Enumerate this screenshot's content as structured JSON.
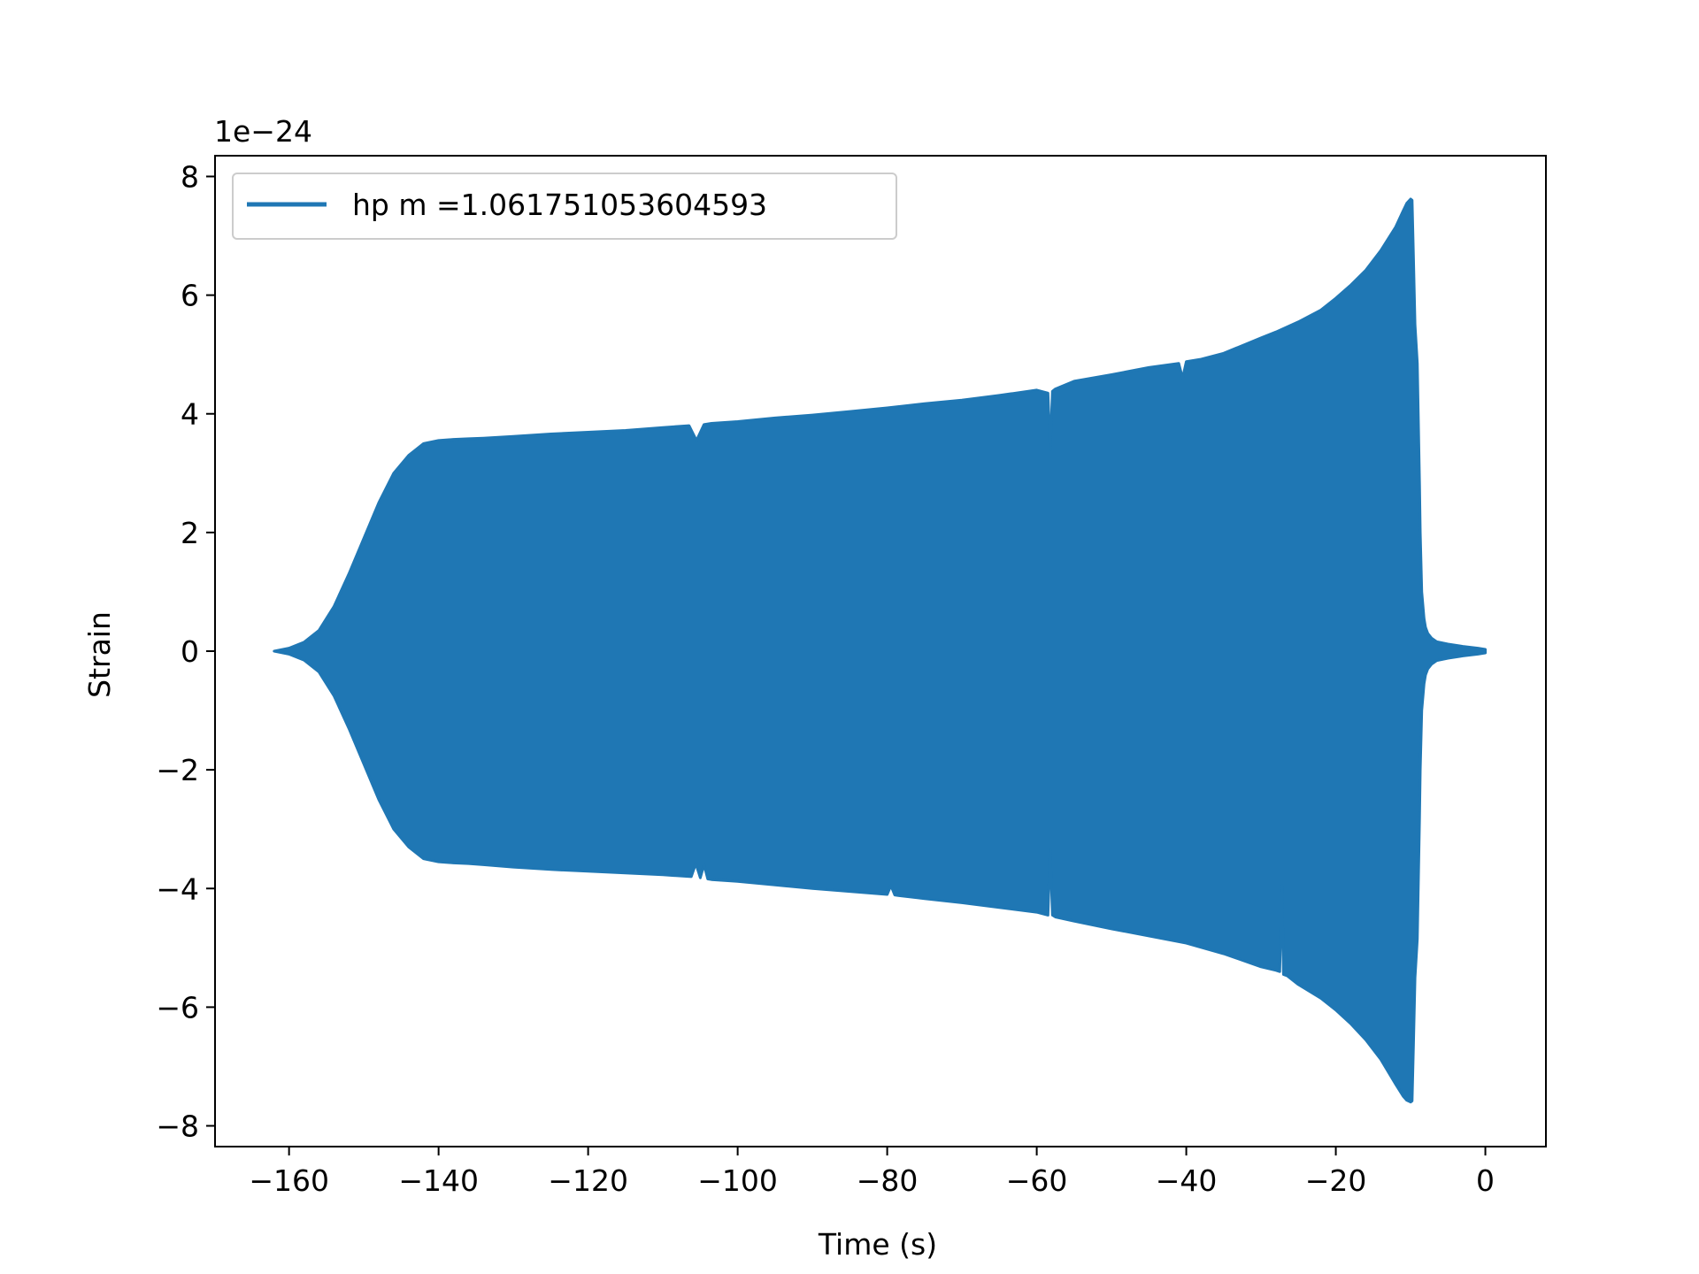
{
  "chart_data": {
    "type": "area",
    "xlabel": "Time (s)",
    "ylabel": "Strain",
    "offset_label": "1e−24",
    "scale": 1e-24,
    "xlim": [
      -169.9,
      8.1
    ],
    "ylim": [
      -8.35,
      8.35
    ],
    "xticks": [
      -160,
      -140,
      -120,
      -100,
      -80,
      -60,
      -40,
      -20,
      0
    ],
    "xtick_labels": [
      "−160",
      "−140",
      "−120",
      "−100",
      "−80",
      "−60",
      "−40",
      "−20",
      "0"
    ],
    "yticks": [
      -8,
      -6,
      -4,
      -2,
      0,
      2,
      4,
      6,
      8
    ],
    "ytick_labels": [
      "−8",
      "−6",
      "−4",
      "−2",
      "0",
      "2",
      "4",
      "6",
      "8"
    ],
    "grid": false,
    "legend_position": "upper-left",
    "series": [
      {
        "name": "hp m =1.061751053604593",
        "color": "#1f77b4",
        "upper_envelope": {
          "x": [
            -162,
            -160,
            -158,
            -156,
            -154,
            -152,
            -150,
            -148,
            -146,
            -144,
            -142,
            -140,
            -138,
            -136,
            -134,
            -130,
            -125,
            -120,
            -115,
            -110,
            -106.5,
            -105.5,
            -104.5,
            -103.5,
            -100,
            -95,
            -90,
            -85,
            -80,
            -75,
            -70,
            -65,
            -60,
            -58.5,
            -58.2,
            -57.9,
            -57.5,
            -55,
            -50,
            -45,
            -41,
            -40.5,
            -40,
            -38,
            -35,
            -30,
            -28,
            -25,
            -22,
            -20,
            -18,
            -16,
            -14,
            -12,
            -11,
            -10.5,
            -10,
            -9.8,
            -9.6,
            -9.4,
            -9.1,
            -9.0,
            -8.8,
            -8.7,
            -8.5,
            -8.2,
            -8.0,
            -7.7,
            -7.2,
            -6.5,
            -5,
            -3,
            -1,
            0
          ],
          "y": [
            0,
            0.05,
            0.15,
            0.35,
            0.75,
            1.3,
            1.9,
            2.5,
            3.0,
            3.3,
            3.5,
            3.55,
            3.57,
            3.58,
            3.59,
            3.62,
            3.66,
            3.69,
            3.72,
            3.77,
            3.8,
            3.55,
            3.82,
            3.84,
            3.87,
            3.93,
            3.98,
            4.04,
            4.1,
            4.17,
            4.23,
            4.31,
            4.4,
            4.35,
            3.4,
            4.38,
            4.42,
            4.55,
            4.66,
            4.78,
            4.85,
            4.6,
            4.88,
            4.92,
            5.02,
            5.28,
            5.38,
            5.55,
            5.75,
            5.95,
            6.17,
            6.42,
            6.75,
            7.15,
            7.42,
            7.55,
            7.62,
            7.6,
            6.6,
            5.5,
            4.85,
            4.2,
            2.8,
            2.0,
            1.0,
            0.55,
            0.4,
            0.3,
            0.22,
            0.16,
            0.12,
            0.08,
            0.05,
            0.03
          ]
        },
        "lower_envelope": {
          "x": [
            -162,
            -160,
            -158,
            -156,
            -154,
            -152,
            -150,
            -148,
            -146,
            -144,
            -142,
            -140,
            -138,
            -136,
            -134,
            -130,
            -125,
            -120,
            -115,
            -110,
            -106.2,
            -105.6,
            -105,
            -104.5,
            -104,
            -103.5,
            -100,
            -95,
            -90,
            -85,
            -80,
            -79.5,
            -79,
            -78.5,
            -75,
            -70,
            -65,
            -60,
            -58.5,
            -58.2,
            -57.9,
            -57.5,
            -55,
            -50,
            -45,
            -40,
            -35,
            -30,
            -28,
            -27.5,
            -27.2,
            -27,
            -26.5,
            -25,
            -22,
            -20,
            -18,
            -16,
            -14,
            -12,
            -11,
            -10.5,
            -10,
            -9.8,
            -9.6,
            -9.4,
            -9.1,
            -9.0,
            -8.8,
            -8.7,
            -8.5,
            -8.2,
            -8.0,
            -7.7,
            -7.2,
            -6.5,
            -5,
            -3,
            -1,
            0
          ],
          "y": [
            0,
            -0.05,
            -0.15,
            -0.35,
            -0.75,
            -1.3,
            -1.9,
            -2.5,
            -3.0,
            -3.3,
            -3.5,
            -3.55,
            -3.57,
            -3.58,
            -3.6,
            -3.64,
            -3.68,
            -3.71,
            -3.74,
            -3.77,
            -3.8,
            -3.58,
            -3.82,
            -3.6,
            -3.84,
            -3.85,
            -3.88,
            -3.94,
            -4.0,
            -4.05,
            -4.1,
            -3.95,
            -4.11,
            -4.12,
            -4.17,
            -4.24,
            -4.32,
            -4.4,
            -4.45,
            -3.35,
            -4.45,
            -4.48,
            -4.55,
            -4.68,
            -4.8,
            -4.92,
            -5.1,
            -5.32,
            -5.38,
            -5.4,
            -3.95,
            -5.45,
            -5.47,
            -5.62,
            -5.85,
            -6.05,
            -6.28,
            -6.55,
            -6.88,
            -7.3,
            -7.5,
            -7.57,
            -7.6,
            -7.58,
            -6.6,
            -5.5,
            -4.85,
            -4.2,
            -2.8,
            -2.0,
            -1.0,
            -0.55,
            -0.4,
            -0.3,
            -0.22,
            -0.16,
            -0.12,
            -0.08,
            -0.05,
            -0.03
          ]
        }
      }
    ]
  }
}
